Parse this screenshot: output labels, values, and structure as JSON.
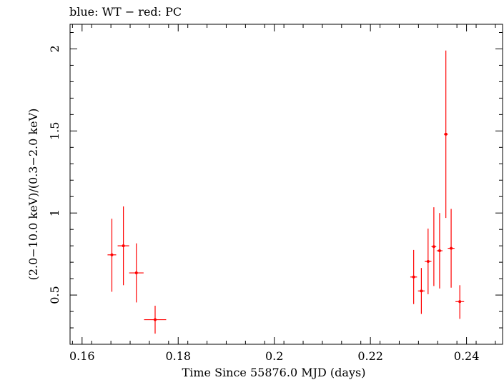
{
  "chart_data": {
    "type": "scatter",
    "title": "blue: WT − red: PC",
    "xlabel": "Time Since 55876.0 MJD (days)",
    "ylabel": "(2.0−10.0 keV)/(0.3−2.0 keV)",
    "xlim": [
      0.1575,
      0.2475
    ],
    "ylim": [
      0.2,
      2.15
    ],
    "x_ticks": [
      0.16,
      0.18,
      0.2,
      0.22,
      0.24
    ],
    "x_tick_labels": [
      "0.16",
      "0.18",
      "0.2",
      "0.22",
      "0.24"
    ],
    "y_ticks": [
      0.5,
      1,
      1.5,
      2
    ],
    "y_tick_labels": [
      "0.5",
      "1",
      "1.5",
      "2"
    ],
    "grid": false,
    "legend": "none",
    "series": [
      {
        "color": "#ff0000",
        "points": [
          {
            "x": 0.1662,
            "y": 0.745,
            "xerr": 0.0009,
            "ylo": 0.52,
            "yhi": 0.965
          },
          {
            "x": 0.1686,
            "y": 0.8,
            "xerr": 0.0012,
            "ylo": 0.56,
            "yhi": 1.04
          },
          {
            "x": 0.1713,
            "y": 0.635,
            "xerr": 0.0015,
            "ylo": 0.455,
            "yhi": 0.815
          },
          {
            "x": 0.1752,
            "y": 0.35,
            "xerr": 0.0023,
            "ylo": 0.265,
            "yhi": 0.435
          },
          {
            "x": 0.229,
            "y": 0.61,
            "xerr": 0.0007,
            "ylo": 0.445,
            "yhi": 0.775
          },
          {
            "x": 0.2306,
            "y": 0.525,
            "xerr": 0.0007,
            "ylo": 0.385,
            "yhi": 0.665
          },
          {
            "x": 0.232,
            "y": 0.705,
            "xerr": 0.0007,
            "ylo": 0.505,
            "yhi": 0.905
          },
          {
            "x": 0.2332,
            "y": 0.795,
            "xerr": 0.0005,
            "ylo": 0.555,
            "yhi": 1.035
          },
          {
            "x": 0.2344,
            "y": 0.77,
            "xerr": 0.0006,
            "ylo": 0.54,
            "yhi": 1.0
          },
          {
            "x": 0.2357,
            "y": 1.48,
            "xerr": 0.0004,
            "ylo": 0.97,
            "yhi": 1.99
          },
          {
            "x": 0.2368,
            "y": 0.785,
            "xerr": 0.0007,
            "ylo": 0.545,
            "yhi": 1.025
          },
          {
            "x": 0.2386,
            "y": 0.46,
            "xerr": 0.0009,
            "ylo": 0.355,
            "yhi": 0.56
          }
        ]
      }
    ]
  }
}
